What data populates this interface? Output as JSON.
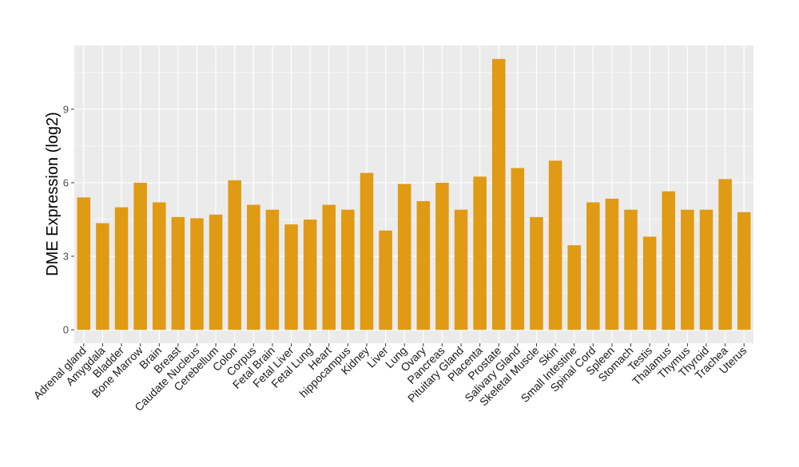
{
  "chart_data": {
    "type": "bar",
    "ylabel": "DME Expression (log2)",
    "xlabel": "",
    "title": "",
    "categories": [
      "Adrenal gland",
      "Amygdala",
      "Bladder",
      "Bone Marrow",
      "Brain",
      "Breast",
      "Caudate Nucleus",
      "Cerebellum",
      "Colon",
      "Corpus",
      "Fetal Brain",
      "Fetal Liver",
      "Fetal Lung",
      "Heart",
      "hippocampus",
      "Kidney",
      "Liver",
      "Lung",
      "Ovary",
      "Pancreas",
      "Pituitary Gland",
      "Placenta",
      "Prostate",
      "Salivary Gland",
      "Skeletal Muscle",
      "Skin",
      "Small Intestine",
      "Spinal Cord",
      "Spleen",
      "Stomach",
      "Testis",
      "Thalamus",
      "Thymus",
      "Thyroid",
      "Trachea",
      "Uterus"
    ],
    "values": [
      5.4,
      4.35,
      5.0,
      6.0,
      5.2,
      4.6,
      4.55,
      4.7,
      6.1,
      5.1,
      4.9,
      4.3,
      4.5,
      5.1,
      4.9,
      6.4,
      4.05,
      5.95,
      5.25,
      6.0,
      4.9,
      6.25,
      11.05,
      6.6,
      4.6,
      6.9,
      3.45,
      5.2,
      5.35,
      4.9,
      3.8,
      5.65,
      4.9,
      4.9,
      6.15,
      4.8
    ],
    "yticks": [
      0,
      3,
      6,
      9
    ],
    "ylim": [
      -0.55,
      11.6
    ],
    "bar_color": "#E09A13",
    "panel_bg": "#EBEBEB",
    "grid_color": "#FFFFFF",
    "grid": true,
    "legend": "none"
  }
}
